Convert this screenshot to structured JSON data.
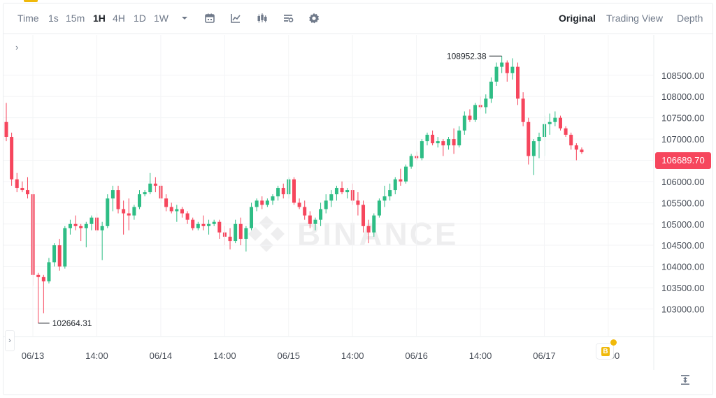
{
  "toolbar": {
    "time_label": "Time",
    "intervals": [
      "1s",
      "15m",
      "1H",
      "4H",
      "1D",
      "1W"
    ],
    "active_interval": "1H",
    "views": [
      "Original",
      "Trading View",
      "Depth"
    ],
    "active_view": "Original"
  },
  "chart": {
    "current_price": "106689.70",
    "high_label": "108952.38",
    "low_label": "102664.31",
    "watermark": "BINANCE",
    "colors": {
      "up": "#2ebd85",
      "down": "#f6465d",
      "grid": "#f3f4f6",
      "axis_text": "#707a8a"
    }
  },
  "chart_data": {
    "type": "candlestick",
    "y_ticks": [
      "108500.00",
      "108000.00",
      "107500.00",
      "107000.00",
      "106500.00",
      "106000.00",
      "105500.00",
      "105000.00",
      "104500.00",
      "104000.00",
      "103500.00",
      "103000.00"
    ],
    "y_tick_values": [
      108500,
      108000,
      107500,
      107000,
      106500,
      106000,
      105500,
      105000,
      104500,
      104000,
      103500,
      103000
    ],
    "x_ticks": [
      "06/13",
      "14:00",
      "06/14",
      "14:00",
      "06/15",
      "14:00",
      "06/16",
      "14:00",
      "06/17",
      "14:00"
    ],
    "ylim": [
      102350,
      109450
    ],
    "candles": [
      [
        107400,
        107850,
        106950,
        107050
      ],
      [
        107050,
        107150,
        105900,
        106050
      ],
      [
        106050,
        106200,
        105750,
        105850
      ],
      [
        105850,
        106000,
        105750,
        105800
      ],
      [
        105800,
        106100,
        105600,
        105700
      ],
      [
        105700,
        105800,
        103550,
        103800
      ],
      [
        103800,
        103850,
        102664.31,
        103750
      ],
      [
        103750,
        103800,
        102900,
        103650
      ],
      [
        103650,
        104200,
        103600,
        104100
      ],
      [
        104100,
        104550,
        104000,
        104500
      ],
      [
        104500,
        104650,
        103900,
        104000
      ],
      [
        104000,
        104950,
        103950,
        104900
      ],
      [
        104900,
        105100,
        104750,
        105000
      ],
      [
        105000,
        105200,
        104850,
        104950
      ],
      [
        104950,
        105000,
        104600,
        104900
      ],
      [
        104900,
        105050,
        104450,
        105000
      ],
      [
        105000,
        105200,
        104850,
        105150
      ],
      [
        105150,
        105250,
        104800,
        104850
      ],
      [
        104850,
        105050,
        104150,
        104950
      ],
      [
        104950,
        105700,
        104900,
        105600
      ],
      [
        105600,
        105900,
        105300,
        105800
      ],
      [
        105800,
        105900,
        105250,
        105350
      ],
      [
        105350,
        105550,
        104750,
        105250
      ],
      [
        105250,
        105600,
        104850,
        105200
      ],
      [
        105200,
        105450,
        105100,
        105400
      ],
      [
        105400,
        105800,
        105350,
        105700
      ],
      [
        105700,
        105800,
        105650,
        105750
      ],
      [
        105750,
        106200,
        105700,
        105950
      ],
      [
        105950,
        106100,
        105750,
        105900
      ],
      [
        105900,
        105950,
        105500,
        105600
      ],
      [
        105600,
        105700,
        105300,
        105400
      ],
      [
        105400,
        105500,
        105250,
        105300
      ],
      [
        105300,
        105450,
        105050,
        105350
      ],
      [
        105350,
        105400,
        105150,
        105250
      ],
      [
        105250,
        105300,
        105000,
        105100
      ],
      [
        105100,
        105150,
        104850,
        104900
      ],
      [
        104900,
        105050,
        104850,
        105000
      ],
      [
        105000,
        105200,
        104850,
        104950
      ],
      [
        104950,
        105100,
        104750,
        105000
      ],
      [
        105000,
        105100,
        104950,
        105050
      ],
      [
        105050,
        105100,
        104650,
        104800
      ],
      [
        104800,
        104950,
        104500,
        104700
      ],
      [
        104700,
        104900,
        104400,
        104600
      ],
      [
        104600,
        105100,
        104550,
        105000
      ],
      [
        105000,
        105150,
        104500,
        104650
      ],
      [
        104650,
        104950,
        104350,
        104900
      ],
      [
        104900,
        105500,
        104850,
        105400
      ],
      [
        105400,
        105600,
        105300,
        105550
      ],
      [
        105550,
        105650,
        105350,
        105450
      ],
      [
        105450,
        105600,
        105400,
        105550
      ],
      [
        105550,
        105700,
        105450,
        105650
      ],
      [
        105650,
        105900,
        105550,
        105850
      ],
      [
        105850,
        105950,
        105600,
        105700
      ],
      [
        105700,
        106100,
        105600,
        106050
      ],
      [
        106050,
        106100,
        105450,
        105500
      ],
      [
        105500,
        105600,
        105350,
        105400
      ],
      [
        105400,
        105550,
        105100,
        105200
      ],
      [
        105200,
        105300,
        104900,
        105000
      ],
      [
        105000,
        105150,
        104850,
        105100
      ],
      [
        105100,
        105500,
        104950,
        105350
      ],
      [
        105350,
        105700,
        105250,
        105550
      ],
      [
        105550,
        105800,
        105400,
        105700
      ],
      [
        105700,
        105900,
        105550,
        105850
      ],
      [
        105850,
        106000,
        105700,
        105750
      ],
      [
        105750,
        105850,
        105600,
        105800
      ],
      [
        105800,
        105950,
        105450,
        105550
      ],
      [
        105550,
        105750,
        105200,
        105450
      ],
      [
        105450,
        105550,
        104800,
        104950
      ],
      [
        104950,
        105100,
        104550,
        104800
      ],
      [
        104800,
        105250,
        104700,
        105200
      ],
      [
        105200,
        105600,
        105150,
        105550
      ],
      [
        105550,
        105900,
        105400,
        105650
      ],
      [
        105650,
        105950,
        105550,
        105800
      ],
      [
        105800,
        106100,
        105700,
        106050
      ],
      [
        106050,
        106300,
        105900,
        106000
      ],
      [
        106000,
        106400,
        105950,
        106350
      ],
      [
        106350,
        106650,
        106300,
        106600
      ],
      [
        106600,
        106700,
        106500,
        106550
      ],
      [
        106550,
        107000,
        106500,
        106950
      ],
      [
        106950,
        107150,
        106850,
        107100
      ],
      [
        107100,
        107200,
        106850,
        106900
      ],
      [
        106900,
        107050,
        106800,
        106950
      ],
      [
        106950,
        107000,
        106600,
        106850
      ],
      [
        106850,
        107050,
        106750,
        107000
      ],
      [
        107000,
        107250,
        106650,
        106850
      ],
      [
        106850,
        107300,
        106800,
        107200
      ],
      [
        107200,
        107650,
        107100,
        107550
      ],
      [
        107550,
        107700,
        107400,
        107450
      ],
      [
        107450,
        107850,
        107400,
        107800
      ],
      [
        107800,
        108000,
        107700,
        107750
      ],
      [
        107750,
        108050,
        107600,
        107950
      ],
      [
        107950,
        108450,
        107850,
        108350
      ],
      [
        108350,
        108800,
        108250,
        108700
      ],
      [
        108700,
        108952.38,
        108550,
        108800
      ],
      [
        108800,
        108850,
        108350,
        108550
      ],
      [
        108550,
        108900,
        108400,
        108700
      ],
      [
        108700,
        108800,
        107800,
        107950
      ],
      [
        107950,
        108100,
        107300,
        107400
      ],
      [
        107400,
        107500,
        106400,
        106600
      ],
      [
        106600,
        107000,
        106150,
        106950
      ],
      [
        106950,
        107150,
        106550,
        107050
      ],
      [
        107050,
        107550,
        106600,
        107350
      ],
      [
        107350,
        107600,
        107100,
        107400
      ],
      [
        107400,
        107650,
        107300,
        107500
      ],
      [
        107500,
        107550,
        107200,
        107250
      ],
      [
        107250,
        107300,
        107050,
        107100
      ],
      [
        107100,
        107150,
        106750,
        106850
      ],
      [
        106850,
        106900,
        106500,
        106750
      ],
      [
        106750,
        106800,
        106650,
        106689.7
      ]
    ]
  }
}
